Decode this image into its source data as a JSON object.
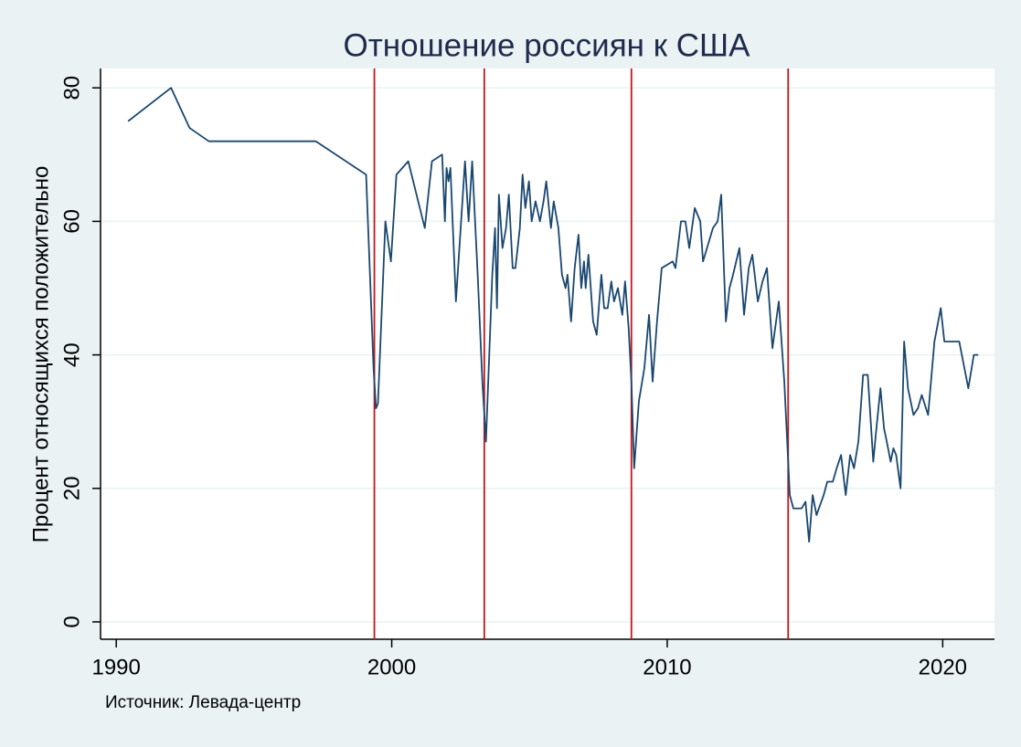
{
  "chart_data": {
    "type": "line",
    "title": "Отношение россиян к США",
    "y_label": "Процент относящихся положительно",
    "source": "Источник: Левада-центр",
    "color": "#1a476f",
    "grid": true,
    "xlim": [
      1989.43,
      2021.88
    ],
    "ylim": [
      -2.6,
      82.9
    ],
    "xticks": [
      1990,
      2000,
      2010,
      2020
    ],
    "yticks": [
      0,
      20,
      40,
      60,
      80
    ],
    "reference_lines": {
      "color": "#c4161c",
      "x": [
        1999.37,
        2003.36,
        2008.7,
        2014.39
      ]
    },
    "x": [
      1990.43,
      1991.99,
      1992.66,
      1993.36,
      1997.24,
      1999.07,
      1999.34,
      1999.43,
      1999.5,
      1999.77,
      1999.97,
      2000.17,
      2000.6,
      2001.2,
      2001.46,
      2001.83,
      2001.93,
      2001.99,
      2002.06,
      2002.13,
      2002.33,
      2002.66,
      2002.79,
      2002.92,
      2003.12,
      2003.29,
      2003.42,
      2003.65,
      2003.75,
      2003.82,
      2003.89,
      2004.02,
      2004.15,
      2004.25,
      2004.39,
      2004.49,
      2004.65,
      2004.75,
      2004.85,
      2004.98,
      2005.08,
      2005.22,
      2005.38,
      2005.51,
      2005.61,
      2005.78,
      2005.88,
      2006.05,
      2006.18,
      2006.31,
      2006.38,
      2006.51,
      2006.64,
      2006.78,
      2006.88,
      2006.98,
      2007.04,
      2007.14,
      2007.31,
      2007.44,
      2007.61,
      2007.71,
      2007.84,
      2007.97,
      2008.07,
      2008.21,
      2008.37,
      2008.47,
      2008.6,
      2008.7,
      2008.8,
      2008.97,
      2009.17,
      2009.34,
      2009.47,
      2009.63,
      2009.8,
      2010.2,
      2010.3,
      2010.5,
      2010.66,
      2010.8,
      2011.0,
      2011.2,
      2011.3,
      2011.66,
      2011.83,
      2011.96,
      2012.13,
      2012.26,
      2012.39,
      2012.62,
      2012.79,
      2012.96,
      2013.09,
      2013.29,
      2013.46,
      2013.62,
      2013.82,
      2014.05,
      2014.25,
      2014.45,
      2014.58,
      2014.88,
      2015.02,
      2015.15,
      2015.28,
      2015.42,
      2015.68,
      2015.81,
      2016.01,
      2016.15,
      2016.31,
      2016.48,
      2016.64,
      2016.78,
      2016.94,
      2017.11,
      2017.28,
      2017.48,
      2017.57,
      2017.74,
      2017.87,
      2017.97,
      2018.11,
      2018.21,
      2018.31,
      2018.47,
      2018.6,
      2018.74,
      2018.94,
      2019.1,
      2019.24,
      2019.47,
      2019.7,
      2019.93,
      2020.06,
      2020.6,
      2020.93,
      2021.13,
      2021.29
    ],
    "values": [
      75,
      80,
      74,
      72,
      72,
      67,
      38,
      32,
      32.7,
      60,
      54,
      67,
      69,
      59,
      69,
      70,
      60,
      68,
      66,
      68,
      48,
      69,
      60,
      69,
      52,
      36,
      27,
      52,
      59,
      47,
      64,
      56,
      59,
      64,
      53,
      53,
      59,
      67,
      62,
      66,
      60,
      63,
      60,
      63,
      66,
      59,
      63,
      59,
      52,
      50,
      52,
      45,
      53,
      58,
      50,
      54,
      50,
      55,
      45,
      43,
      52,
      47,
      47,
      51,
      48,
      50,
      46,
      51,
      44,
      36,
      23,
      33,
      38,
      46,
      36,
      45,
      53,
      54,
      53,
      60,
      60,
      56,
      62,
      60,
      54,
      59,
      60,
      64,
      45,
      50,
      52,
      56,
      46,
      53,
      55,
      48,
      51,
      53,
      41,
      48,
      36,
      19,
      17,
      17,
      18,
      12,
      19,
      16,
      19,
      21,
      21,
      23,
      25,
      19,
      25,
      23,
      27,
      37,
      37,
      24,
      28,
      35,
      29,
      27,
      24,
      26,
      25,
      20,
      42,
      35,
      31,
      32,
      34,
      31,
      42,
      47,
      42,
      42,
      35,
      40,
      40
    ]
  }
}
